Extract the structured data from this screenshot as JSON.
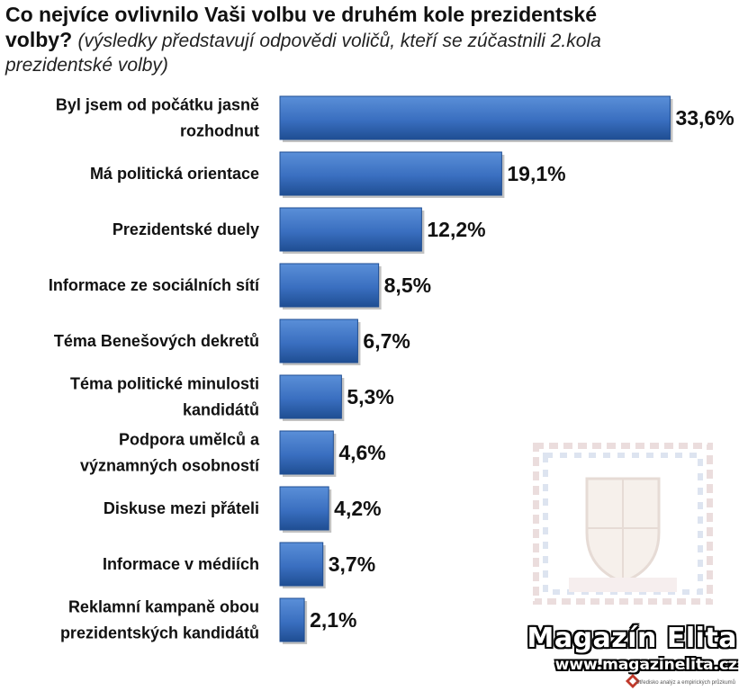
{
  "title": {
    "line1": "Co nejvíce ovlivnilo Vaši volbu ve druhém kole prezidentské",
    "line2_bold": "volby?",
    "subtitle_part1": "(výsledky představují odpovědi voličů, kteří se zúčastnili 2.kola",
    "subtitle_part2": "prezidentské volby)"
  },
  "chart_data": {
    "type": "bar",
    "orientation": "horizontal",
    "categories": [
      [
        "Byl jsem od počátku jasně",
        "rozhodnut"
      ],
      [
        "Má politická orientace"
      ],
      [
        "Prezidentské duely"
      ],
      [
        "Informace ze sociálních sítí"
      ],
      [
        "Téma Benešových dekretů"
      ],
      [
        "Téma politické minulosti",
        "kandidátů"
      ],
      [
        "Podpora umělců a",
        "významných osobností"
      ],
      [
        "Diskuse mezi přáteli"
      ],
      [
        "Informace v médiích"
      ],
      [
        "Reklamní kampaně obou",
        "prezidentských kandidátů"
      ]
    ],
    "values": [
      33.6,
      19.1,
      12.2,
      8.5,
      6.7,
      5.3,
      4.6,
      4.2,
      3.7,
      2.1
    ],
    "value_labels": [
      "33,6%",
      "19,1%",
      "12,2%",
      "8,5%",
      "6,7%",
      "5,3%",
      "4,6%",
      "4,2%",
      "3,7%",
      "2,1%"
    ],
    "xlim": [
      0,
      35
    ],
    "bar_color": "#3a6fc0",
    "bar_color_dark": "#1f4e93",
    "grid": false,
    "legend": "none"
  },
  "branding": {
    "name": "Magazín Elita",
    "url": "www.magazinelita.cz",
    "tagline": "Středisko analýz a empirických průzkumů"
  }
}
